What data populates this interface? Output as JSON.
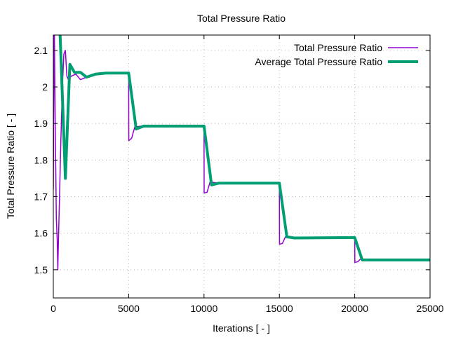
{
  "chart_data": {
    "type": "line",
    "title": "Total Pressure Ratio",
    "xlabel": "Iterations [ - ]",
    "ylabel": "Total Pressure Ratio [ - ]",
    "xlim": [
      0,
      25000
    ],
    "ylim": [
      1.423,
      2.142
    ],
    "xticks": [
      0,
      5000,
      10000,
      15000,
      20000,
      25000
    ],
    "xtick_labels": [
      "0",
      "5000",
      "10000",
      "15000",
      "20000",
      "25000"
    ],
    "yticks": [
      1.5,
      1.6,
      1.7,
      1.8,
      1.9,
      2.0,
      2.1
    ],
    "ytick_labels": [
      "1.5",
      "1.6",
      "1.7",
      "1.8",
      "1.9",
      "2",
      "2.1"
    ],
    "grid": true,
    "legend_position": "top-right",
    "series": [
      {
        "name": "Total Pressure Ratio",
        "color": "#9400d3",
        "x": [
          0,
          60,
          120,
          200,
          260,
          300,
          340,
          400,
          500,
          600,
          700,
          800,
          900,
          1000,
          1200,
          1500,
          1800,
          2100,
          2500,
          3000,
          5000,
          5010,
          5200,
          5400,
          6000,
          10000,
          10010,
          10200,
          10400,
          11000,
          15000,
          15010,
          15200,
          15400,
          16000,
          20000,
          20010,
          20200,
          20400,
          21000,
          25000
        ],
        "y": [
          1.72,
          2.2,
          1.92,
          1.64,
          1.58,
          1.5,
          1.58,
          1.68,
          1.85,
          2.0,
          2.09,
          2.1,
          2.03,
          2.02,
          2.03,
          2.035,
          2.02,
          2.025,
          2.03,
          2.037,
          2.037,
          1.853,
          1.86,
          1.89,
          1.894,
          1.894,
          1.71,
          1.712,
          1.74,
          1.737,
          1.737,
          1.57,
          1.572,
          1.59,
          1.587,
          1.587,
          1.52,
          1.522,
          1.53,
          1.527,
          1.527
        ]
      },
      {
        "name": "Average Total Pressure Ratio",
        "color": "#009e73",
        "x": [
          400,
          800,
          1100,
          1400,
          1800,
          2200,
          2800,
          3500,
          5000,
          5500,
          6000,
          10000,
          10500,
          11000,
          15000,
          15500,
          16000,
          20000,
          20500,
          25000
        ],
        "y": [
          2.2,
          1.75,
          2.062,
          2.04,
          2.04,
          2.027,
          2.035,
          2.038,
          2.038,
          1.885,
          1.893,
          1.893,
          1.732,
          1.737,
          1.737,
          1.59,
          1.587,
          1.588,
          1.527,
          1.527
        ]
      }
    ]
  }
}
